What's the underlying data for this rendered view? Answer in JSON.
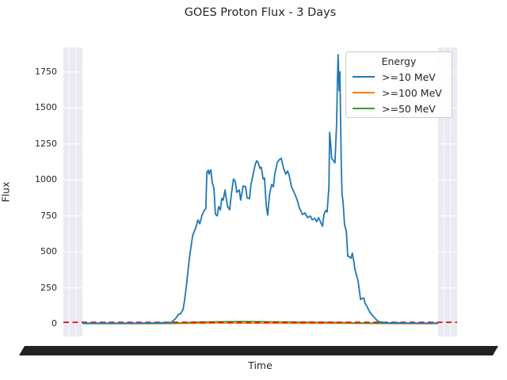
{
  "figure": {
    "background": "#ffffff",
    "text_color": "#262626"
  },
  "chart": {
    "title": "GOES Proton Flux - 3 Days",
    "xlabel": "Time",
    "ylabel": "Flux",
    "legend_title": "Energy"
  },
  "chart_data": {
    "type": "line",
    "title": "GOES Proton Flux - 3 Days",
    "xlabel": "Time",
    "ylabel": "Flux",
    "ylim": [
      -88,
      1920
    ],
    "yticks": [
      0,
      250,
      500,
      750,
      1000,
      1250,
      1500,
      1750
    ],
    "grid": true,
    "plot_background": "#eaeaf2",
    "gridline_color": "#ffffff",
    "legend": {
      "title": "Energy",
      "position": "upper right"
    },
    "x_tick_labels_unreadable": true,
    "series": [
      {
        "name": ">=10 MeV",
        "color": "#1f77b4",
        "x": [
          0,
          0.024,
          0.058,
          0.102,
          0.147,
          0.192,
          0.225,
          0.24,
          0.249,
          0.256,
          0.263,
          0.272,
          0.276,
          0.283,
          0.287,
          0.292,
          0.296,
          0.301,
          0.305,
          0.31,
          0.314,
          0.318,
          0.325,
          0.33,
          0.336,
          0.343,
          0.347,
          0.35,
          0.354,
          0.356,
          0.361,
          0.365,
          0.37,
          0.374,
          0.379,
          0.383,
          0.388,
          0.392,
          0.396,
          0.401,
          0.408,
          0.414,
          0.419,
          0.425,
          0.43,
          0.434,
          0.441,
          0.445,
          0.452,
          0.459,
          0.463,
          0.47,
          0.474,
          0.481,
          0.486,
          0.49,
          0.494,
          0.499,
          0.503,
          0.508,
          0.512,
          0.517,
          0.521,
          0.526,
          0.532,
          0.537,
          0.541,
          0.548,
          0.555,
          0.559,
          0.566,
          0.572,
          0.577,
          0.581,
          0.588,
          0.597,
          0.604,
          0.61,
          0.619,
          0.626,
          0.633,
          0.641,
          0.646,
          0.653,
          0.659,
          0.664,
          0.67,
          0.675,
          0.679,
          0.684,
          0.688,
          0.693,
          0.695,
          0.697,
          0.701,
          0.706,
          0.71,
          0.715,
          0.717,
          0.719,
          0.722,
          0.724,
          0.726,
          0.728,
          0.73,
          0.733,
          0.737,
          0.742,
          0.746,
          0.75,
          0.755,
          0.759,
          0.764,
          0.766,
          0.771,
          0.775,
          0.777,
          0.782,
          0.786,
          0.791,
          0.795,
          0.8,
          0.804,
          0.808,
          0.815,
          0.822,
          0.828,
          0.835,
          0.844,
          0.86,
          0.882,
          0.915,
          0.949,
          0.982,
          1
        ],
        "y": [
          5,
          4,
          5,
          4,
          5,
          5,
          7,
          6,
          10,
          22,
          40,
          70,
          68,
          100,
          160,
          253,
          346,
          457,
          528,
          612,
          640,
          662,
          722,
          695,
          752,
          790,
          800,
          1050,
          1068,
          1040,
          1070,
          982,
          940,
          762,
          750,
          815,
          790,
          872,
          860,
          930,
          815,
          793,
          903,
          1007,
          986,
          914,
          930,
          860,
          958,
          952,
          875,
          870,
          968,
          1050,
          1106,
          1133,
          1122,
          1080,
          1089,
          1007,
          1013,
          820,
          755,
          897,
          968,
          952,
          1040,
          1122,
          1144,
          1150,
          1078,
          1040,
          1062,
          1035,
          952,
          903,
          860,
          804,
          760,
          771,
          738,
          749,
          722,
          733,
          710,
          738,
          705,
          678,
          760,
          787,
          776,
          950,
          1330,
          1280,
          1150,
          1134,
          1118,
          1400,
          1680,
          1870,
          1620,
          1750,
          1398,
          1080,
          900,
          845,
          690,
          643,
          470,
          469,
          455,
          490,
          420,
          381,
          333,
          300,
          262,
          169,
          175,
          180,
          140,
          122,
          100,
          82,
          60,
          40,
          24,
          14,
          9,
          6,
          7,
          5,
          5,
          4,
          5
        ]
      },
      {
        "name": ">=100 MeV",
        "color": "#ff7f0e",
        "x": [
          0,
          0.1,
          0.2,
          0.27,
          0.32,
          0.4,
          0.5,
          0.6,
          0.7,
          0.8,
          0.9,
          1
        ],
        "y": [
          1,
          1,
          1,
          2,
          3,
          5,
          4,
          3,
          3,
          2,
          1,
          1
        ]
      },
      {
        "name": ">=50 MeV",
        "color": "#2ca02c",
        "x": [
          0,
          0.06,
          0.12,
          0.18,
          0.23,
          0.26,
          0.29,
          0.32,
          0.36,
          0.4,
          0.45,
          0.5,
          0.55,
          0.6,
          0.65,
          0.7,
          0.73,
          0.76,
          0.8,
          0.85,
          0.9,
          0.95,
          1
        ],
        "y": [
          2,
          2,
          2,
          2,
          3,
          4,
          8,
          12,
          14,
          15,
          16,
          15,
          14,
          12,
          11,
          10,
          9,
          7,
          5,
          4,
          3,
          3,
          3
        ]
      }
    ],
    "threshold_line": {
      "value": 10,
      "color": "#e01010",
      "style": "dashed"
    }
  }
}
